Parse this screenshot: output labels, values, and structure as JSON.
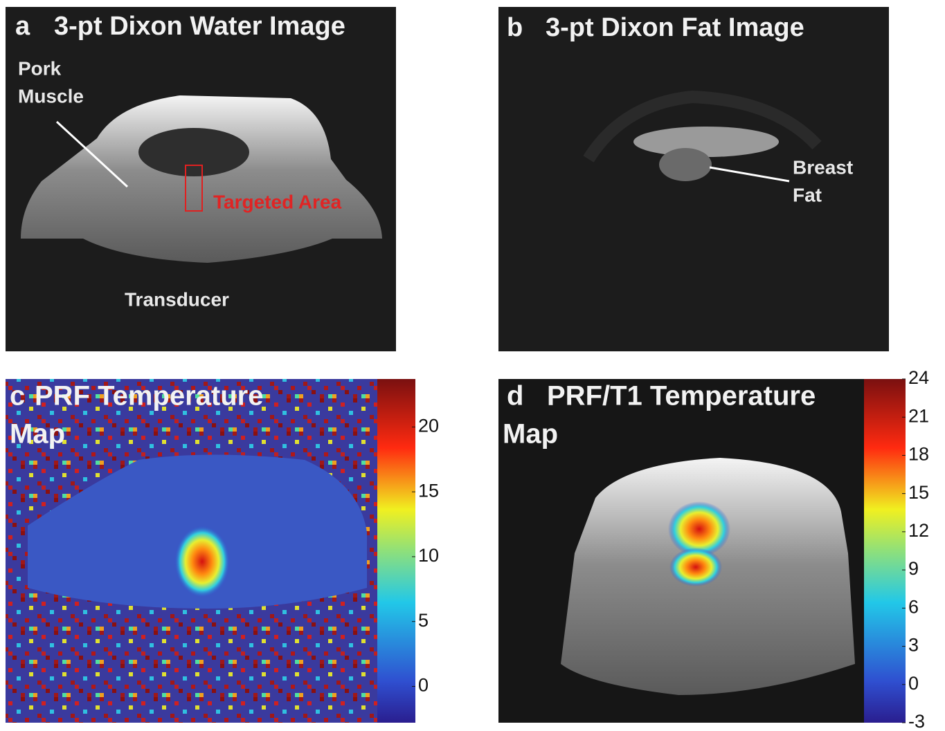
{
  "panels": [
    {
      "label": "a",
      "title": "3-pt Dixon Water Image",
      "annotations": [
        "Pork",
        "Muscle",
        "Targeted Area",
        "Transducer"
      ]
    },
    {
      "label": "b",
      "title": "3-pt Dixon Fat Image",
      "annotations": [
        "Breast",
        "Fat"
      ]
    },
    {
      "label": "c",
      "title": [
        "PRF Temperature",
        "Map"
      ],
      "colorbar": {
        "lim": [
          -2.8,
          23.7
        ],
        "ticks": [
          0,
          5,
          10,
          15,
          20
        ]
      }
    },
    {
      "label": "d",
      "title": [
        "PRF/T1 Temperature",
        "Map"
      ],
      "colorbar": {
        "lim": [
          -3,
          24
        ],
        "ticks": [
          -3,
          0,
          3,
          6,
          9,
          12,
          15,
          18,
          21,
          24
        ]
      }
    }
  ]
}
